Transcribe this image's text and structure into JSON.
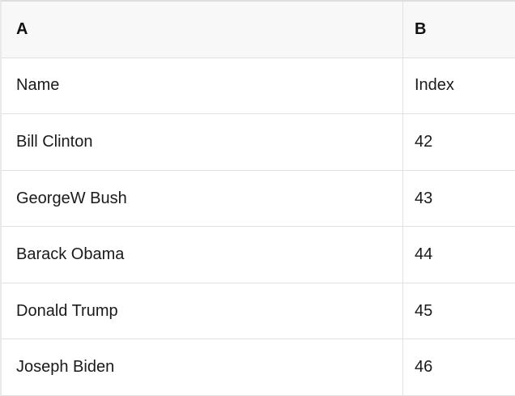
{
  "table": {
    "columns": [
      {
        "label": "A"
      },
      {
        "label": "B"
      }
    ],
    "rows": [
      {
        "a": "Name",
        "b": "Index"
      },
      {
        "a": "Bill Clinton",
        "b": "42"
      },
      {
        "a": "GeorgeW Bush",
        "b": "43"
      },
      {
        "a": "Barack Obama",
        "b": "44"
      },
      {
        "a": "Donald Trump",
        "b": "45"
      },
      {
        "a": "Joseph Biden",
        "b": "46"
      }
    ]
  },
  "colors": {
    "header_bg": "#f8f8f8",
    "grid_border": "#e0e0e0",
    "text": "#1a1a1a"
  }
}
